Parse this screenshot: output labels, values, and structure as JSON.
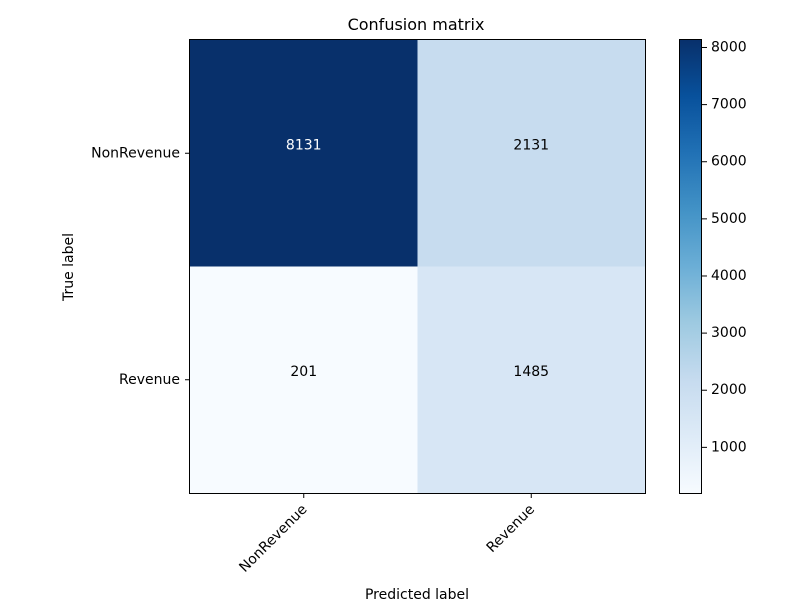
{
  "chart_data": {
    "type": "heatmap",
    "title": "Confusion matrix",
    "xlabel": "Predicted label",
    "ylabel": "True label",
    "x_categories": [
      "NonRevenue",
      "Revenue"
    ],
    "y_categories": [
      "NonRevenue",
      "Revenue"
    ],
    "values": [
      [
        8131,
        2131
      ],
      [
        201,
        1485
      ]
    ],
    "colormap": "Blues",
    "colorbar": {
      "min": 201,
      "max": 8131,
      "ticks": [
        1000,
        2000,
        3000,
        4000,
        5000,
        6000,
        7000,
        8000
      ]
    },
    "grid": false
  }
}
